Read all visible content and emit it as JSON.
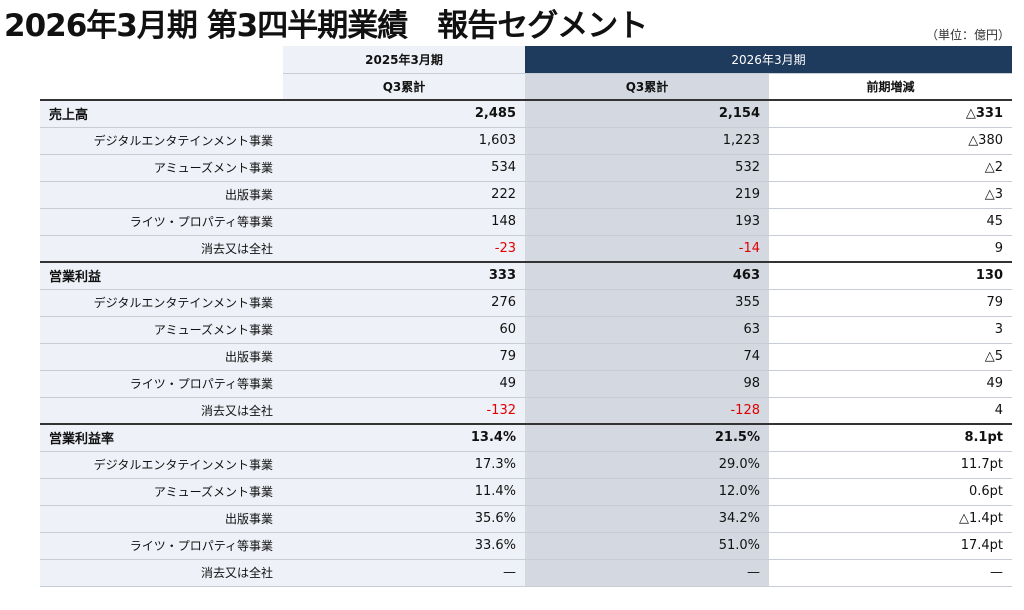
{
  "header": {
    "title": "2026年3月期 第3四半期業績　報告セグメント",
    "unit": "（単位：億円）"
  },
  "table": {
    "period_headers": [
      "2025年3月期",
      "2026年3月期"
    ],
    "column_headers": [
      "Q3累計",
      "Q3累計",
      "前期増減"
    ],
    "sections": [
      {
        "row": [
          "売上高",
          "2,485",
          "2,154",
          "△331"
        ],
        "items": [
          [
            "デジタルエンタテインメント事業",
            "1,603",
            "1,223",
            "△380"
          ],
          [
            "アミューズメント事業",
            "534",
            "532",
            "△2"
          ],
          [
            "出版事業",
            "222",
            "219",
            "△3"
          ],
          [
            "ライツ・プロパティ等事業",
            "148",
            "193",
            "45"
          ],
          [
            "消去又は全社",
            "-23",
            "-14",
            "9"
          ]
        ]
      },
      {
        "row": [
          "営業利益",
          "333",
          "463",
          "130"
        ],
        "items": [
          [
            "デジタルエンタテインメント事業",
            "276",
            "355",
            "79"
          ],
          [
            "アミューズメント事業",
            "60",
            "63",
            "3"
          ],
          [
            "出版事業",
            "79",
            "74",
            "△5"
          ],
          [
            "ライツ・プロパティ等事業",
            "49",
            "98",
            "49"
          ],
          [
            "消去又は全社",
            "-132",
            "-128",
            "4"
          ]
        ]
      },
      {
        "row": [
          "営業利益率",
          "13.4%",
          "21.5%",
          "8.1pt"
        ],
        "items": [
          [
            "デジタルエンタテインメント事業",
            "17.3%",
            "29.0%",
            "11.7pt"
          ],
          [
            "アミューズメント事業",
            "11.4%",
            "12.0%",
            "0.6pt"
          ],
          [
            "出版事業",
            "35.6%",
            "34.2%",
            "△1.4pt"
          ],
          [
            "ライツ・プロパティ等事業",
            "33.6%",
            "51.0%",
            "17.4pt"
          ],
          [
            "消去又は全社",
            "—",
            "—",
            "—"
          ]
        ]
      }
    ]
  }
}
